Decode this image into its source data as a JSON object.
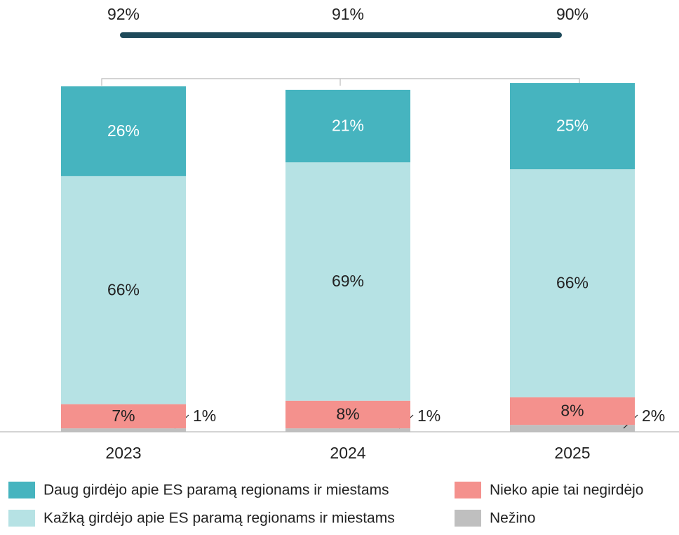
{
  "chart_data": {
    "type": "stacked_bar",
    "categories": [
      "2023",
      "2024",
      "2025"
    ],
    "series": [
      {
        "name": "Nežino",
        "color": "#bfbfbf",
        "values": [
          1,
          1,
          2
        ],
        "value_labels": [
          "1%",
          "1%",
          "2%"
        ]
      },
      {
        "name": "Nieko apie tai negirdėjo",
        "color": "#f4918d",
        "values": [
          7,
          8,
          8
        ],
        "value_labels": [
          "7%",
          "8%",
          "8%"
        ]
      },
      {
        "name": "Kažką girdėjo apie ES paramą regionams ir miestams",
        "color": "#b6e2e4",
        "values": [
          66,
          69,
          66
        ],
        "value_labels": [
          "66%",
          "69%",
          "66%"
        ]
      },
      {
        "name": "Daug girdėjo apie ES paramą regionams ir miestams",
        "color": "#46b4bf",
        "values": [
          26,
          21,
          25
        ],
        "value_labels": [
          "26%",
          "21%",
          "25%"
        ]
      }
    ],
    "totals": {
      "values": [
        92,
        91,
        90
      ],
      "value_labels": [
        "92%",
        "91%",
        "90%"
      ],
      "color": "#1e4a5a"
    }
  }
}
